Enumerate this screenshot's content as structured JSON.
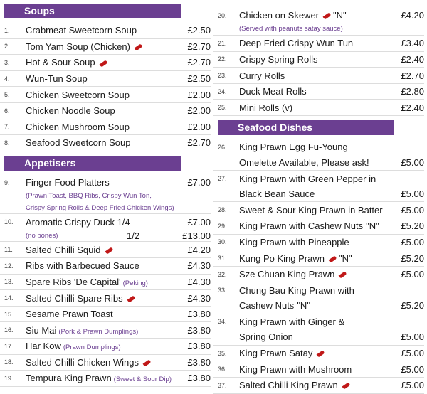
{
  "left": [
    {
      "section": "Soups"
    },
    {
      "num": "1.",
      "lines": [
        {
          "text": "Crabmeat Sweetcorn Soup",
          "price": "£2.50"
        }
      ]
    },
    {
      "num": "2.",
      "lines": [
        {
          "text": "Tom Yam Soup (Chicken)",
          "chilli": true,
          "price": "£2.70"
        }
      ]
    },
    {
      "num": "3.",
      "lines": [
        {
          "text": "Hot & Sour Soup",
          "chilli": true,
          "price": "£2.70"
        }
      ]
    },
    {
      "num": "4.",
      "lines": [
        {
          "text": "Wun-Tun Soup",
          "price": "£2.50"
        }
      ]
    },
    {
      "num": "5.",
      "lines": [
        {
          "text": "Chicken Sweetcorn Soup",
          "price": "£2.00"
        }
      ]
    },
    {
      "num": "6.",
      "lines": [
        {
          "text": "Chicken Noodle Soup",
          "price": "£2.00"
        }
      ]
    },
    {
      "num": "7.",
      "lines": [
        {
          "text": "Chicken Mushroom Soup",
          "price": "£2.00"
        }
      ]
    },
    {
      "num": "8.",
      "lines": [
        {
          "text": "Seafood Sweetcorn Soup",
          "price": "£2.70"
        }
      ]
    },
    {
      "section": "Appetisers"
    },
    {
      "num": "9.",
      "lines": [
        {
          "text": "Finger Food Platters",
          "price": "£7.00"
        },
        {
          "small": true,
          "text": "(Prawn Toast, BBQ Ribs, Crispy Wun Ton,"
        },
        {
          "small": true,
          "text": "Crispy Spring Rolls & Deep Fried Chicken Wings)"
        }
      ]
    },
    {
      "num": "10.",
      "lines": [
        {
          "text": "Aromatic Crispy Duck 1/4",
          "price": "£7.00"
        },
        {
          "small": true,
          "text": "(no bones)",
          "mid": "1/2",
          "price": "£13.00"
        }
      ]
    },
    {
      "num": "11.",
      "lines": [
        {
          "text": "Salted Chilli Squid",
          "chilli": true,
          "price": "£4.20"
        }
      ]
    },
    {
      "num": "12.",
      "lines": [
        {
          "text": "Ribs with Barbecued Sauce",
          "price": "£4.30"
        }
      ]
    },
    {
      "num": "13.",
      "lines": [
        {
          "text": "Spare Ribs 'De Capital'",
          "note": "(Peking)",
          "price": "£4.30"
        }
      ]
    },
    {
      "num": "14.",
      "lines": [
        {
          "text": "Salted  Chilli Spare Ribs",
          "chilli": true,
          "price": "£4.30"
        }
      ]
    },
    {
      "num": "15.",
      "lines": [
        {
          "text": "Sesame Prawn Toast",
          "price": "£3.80"
        }
      ]
    },
    {
      "num": "16.",
      "lines": [
        {
          "text": "Siu Mai",
          "note": "(Pork & Prawn Dumplings)",
          "price": "£3.80"
        }
      ]
    },
    {
      "num": "17.",
      "lines": [
        {
          "text": "Har Kow",
          "note": "(Prawn Dumplings)",
          "price": "£3.80"
        }
      ]
    },
    {
      "num": "18.",
      "lines": [
        {
          "text": "Salted Chilli Chicken Wings",
          "chilli": true,
          "price": "£3.80"
        }
      ]
    },
    {
      "num": "19.",
      "lines": [
        {
          "text": "Tempura King Prawn",
          "note": "(Sweet & Sour Dip)",
          "price": "£3.80"
        }
      ]
    }
  ],
  "right": [
    {
      "num": "20.",
      "lines": [
        {
          "text": "Chicken on Skewer",
          "chilli": true,
          "tag": "\"N\"",
          "price": "£4.20"
        },
        {
          "small": true,
          "text": "(Served with peanuts satay sauce)"
        }
      ]
    },
    {
      "num": "21.",
      "lines": [
        {
          "text": "Deep Fried Crispy Wun Tun",
          "price": "£3.40"
        }
      ]
    },
    {
      "num": "22.",
      "lines": [
        {
          "text": "Crispy Spring Rolls",
          "price": "£2.40"
        }
      ]
    },
    {
      "num": "23.",
      "lines": [
        {
          "text": "Curry Rolls",
          "price": "£2.70"
        }
      ]
    },
    {
      "num": "24.",
      "lines": [
        {
          "text": "Duck Meat Rolls",
          "price": "£2.80"
        }
      ]
    },
    {
      "num": "25.",
      "lines": [
        {
          "text": "Mini Rolls (v)",
          "price": "£2.40"
        }
      ]
    },
    {
      "section": "Seafood Dishes"
    },
    {
      "num": "26.",
      "lines": [
        {
          "text": "King Prawn Egg Fu-Young"
        },
        {
          "text": "Omelette Available, Please ask!",
          "price": "£5.00"
        }
      ]
    },
    {
      "num": "27.",
      "lines": [
        {
          "text": "King Prawn with Green Pepper in"
        },
        {
          "text": "Black Bean Sauce",
          "price": "£5.00"
        }
      ]
    },
    {
      "num": "28.",
      "lines": [
        {
          "text": "Sweet & Sour King Prawn in Batter",
          "price": "£5.00"
        }
      ]
    },
    {
      "num": "29.",
      "lines": [
        {
          "text": "King Prawn with Cashew Nuts",
          "tag": "\"N\"",
          "price": "£5.20"
        }
      ]
    },
    {
      "num": "30.",
      "lines": [
        {
          "text": "King Prawn with  Pineapple",
          "price": "£5.00"
        }
      ]
    },
    {
      "num": "31.",
      "lines": [
        {
          "text": "Kung Po King Prawn",
          "chilli": true,
          "tag": "\"N\"",
          "price": "£5.20"
        }
      ]
    },
    {
      "num": "32.",
      "lines": [
        {
          "text": "Sze Chuan King Prawn",
          "chilli": true,
          "price": "£5.00"
        }
      ]
    },
    {
      "num": "33.",
      "lines": [
        {
          "text": "Chung Bau King Prawn with"
        },
        {
          "text": "Cashew Nuts",
          "tag": "\"N\"",
          "price": "£5.20"
        }
      ]
    },
    {
      "num": "34.",
      "lines": [
        {
          "text": "King Prawn with Ginger &"
        },
        {
          "text": "Spring Onion",
          "price": "£5.00"
        }
      ]
    },
    {
      "num": "35.",
      "lines": [
        {
          "text": "King Prawn Satay",
          "chilli": true,
          "price": "£5.00"
        }
      ]
    },
    {
      "num": "36.",
      "lines": [
        {
          "text": "King Prawn with Mushroom",
          "price": "£5.00"
        }
      ]
    },
    {
      "num": "37.",
      "lines": [
        {
          "text": "Salted Chilli King Prawn",
          "chilli": true,
          "price": "£5.00"
        }
      ]
    }
  ],
  "colors": {
    "section_bar": "#6b3f91",
    "chilli": "#c01818"
  }
}
